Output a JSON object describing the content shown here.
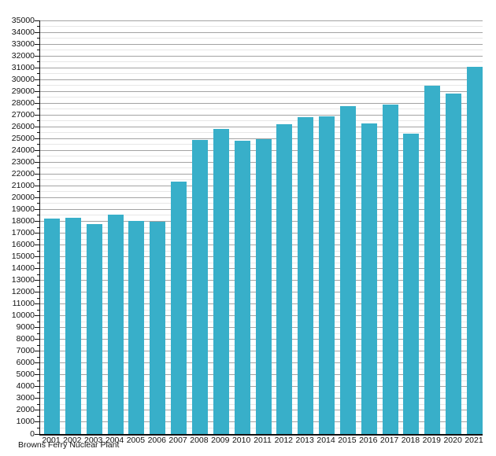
{
  "chart_data": {
    "type": "bar",
    "title": "",
    "footer_label": "Browns Ferry Nuclear Plant",
    "categories": [
      "2001",
      "2002",
      "2003",
      "2004",
      "2005",
      "2006",
      "2007",
      "2008",
      "2009",
      "2010",
      "2011",
      "2012",
      "2013",
      "2014",
      "2015",
      "2016",
      "2017",
      "2018",
      "2019",
      "2020",
      "2021"
    ],
    "values": [
      18200,
      18300,
      17750,
      18550,
      18050,
      17950,
      21350,
      24900,
      25800,
      24800,
      24950,
      26200,
      26800,
      26850,
      27750,
      26300,
      27900,
      25400,
      29450,
      28800,
      31100
    ],
    "xlabel": "",
    "ylabel": "",
    "ylim": [
      0,
      35000
    ],
    "y_major_step": 1000,
    "y_minor_step": 500,
    "y_tick_labels": [
      "0",
      "1000",
      "2000",
      "3000",
      "4000",
      "5000",
      "6000",
      "7000",
      "8000",
      "9000",
      "10000",
      "11000",
      "12000",
      "13000",
      "14000",
      "15000",
      "16000",
      "17000",
      "18000",
      "19000",
      "20000",
      "21000",
      "22000",
      "23000",
      "24000",
      "25000",
      "26000",
      "27000",
      "28000",
      "29000",
      "30000",
      "31000",
      "32000",
      "33000",
      "34000",
      "35000"
    ],
    "grid": true,
    "legend": null,
    "colors": {
      "bar": "#38afc9",
      "grid_major": "#a3a3a3",
      "grid_minor": "#e7e7e7",
      "axis": "#111111",
      "text": "#111111",
      "background": "#ffffff"
    }
  }
}
